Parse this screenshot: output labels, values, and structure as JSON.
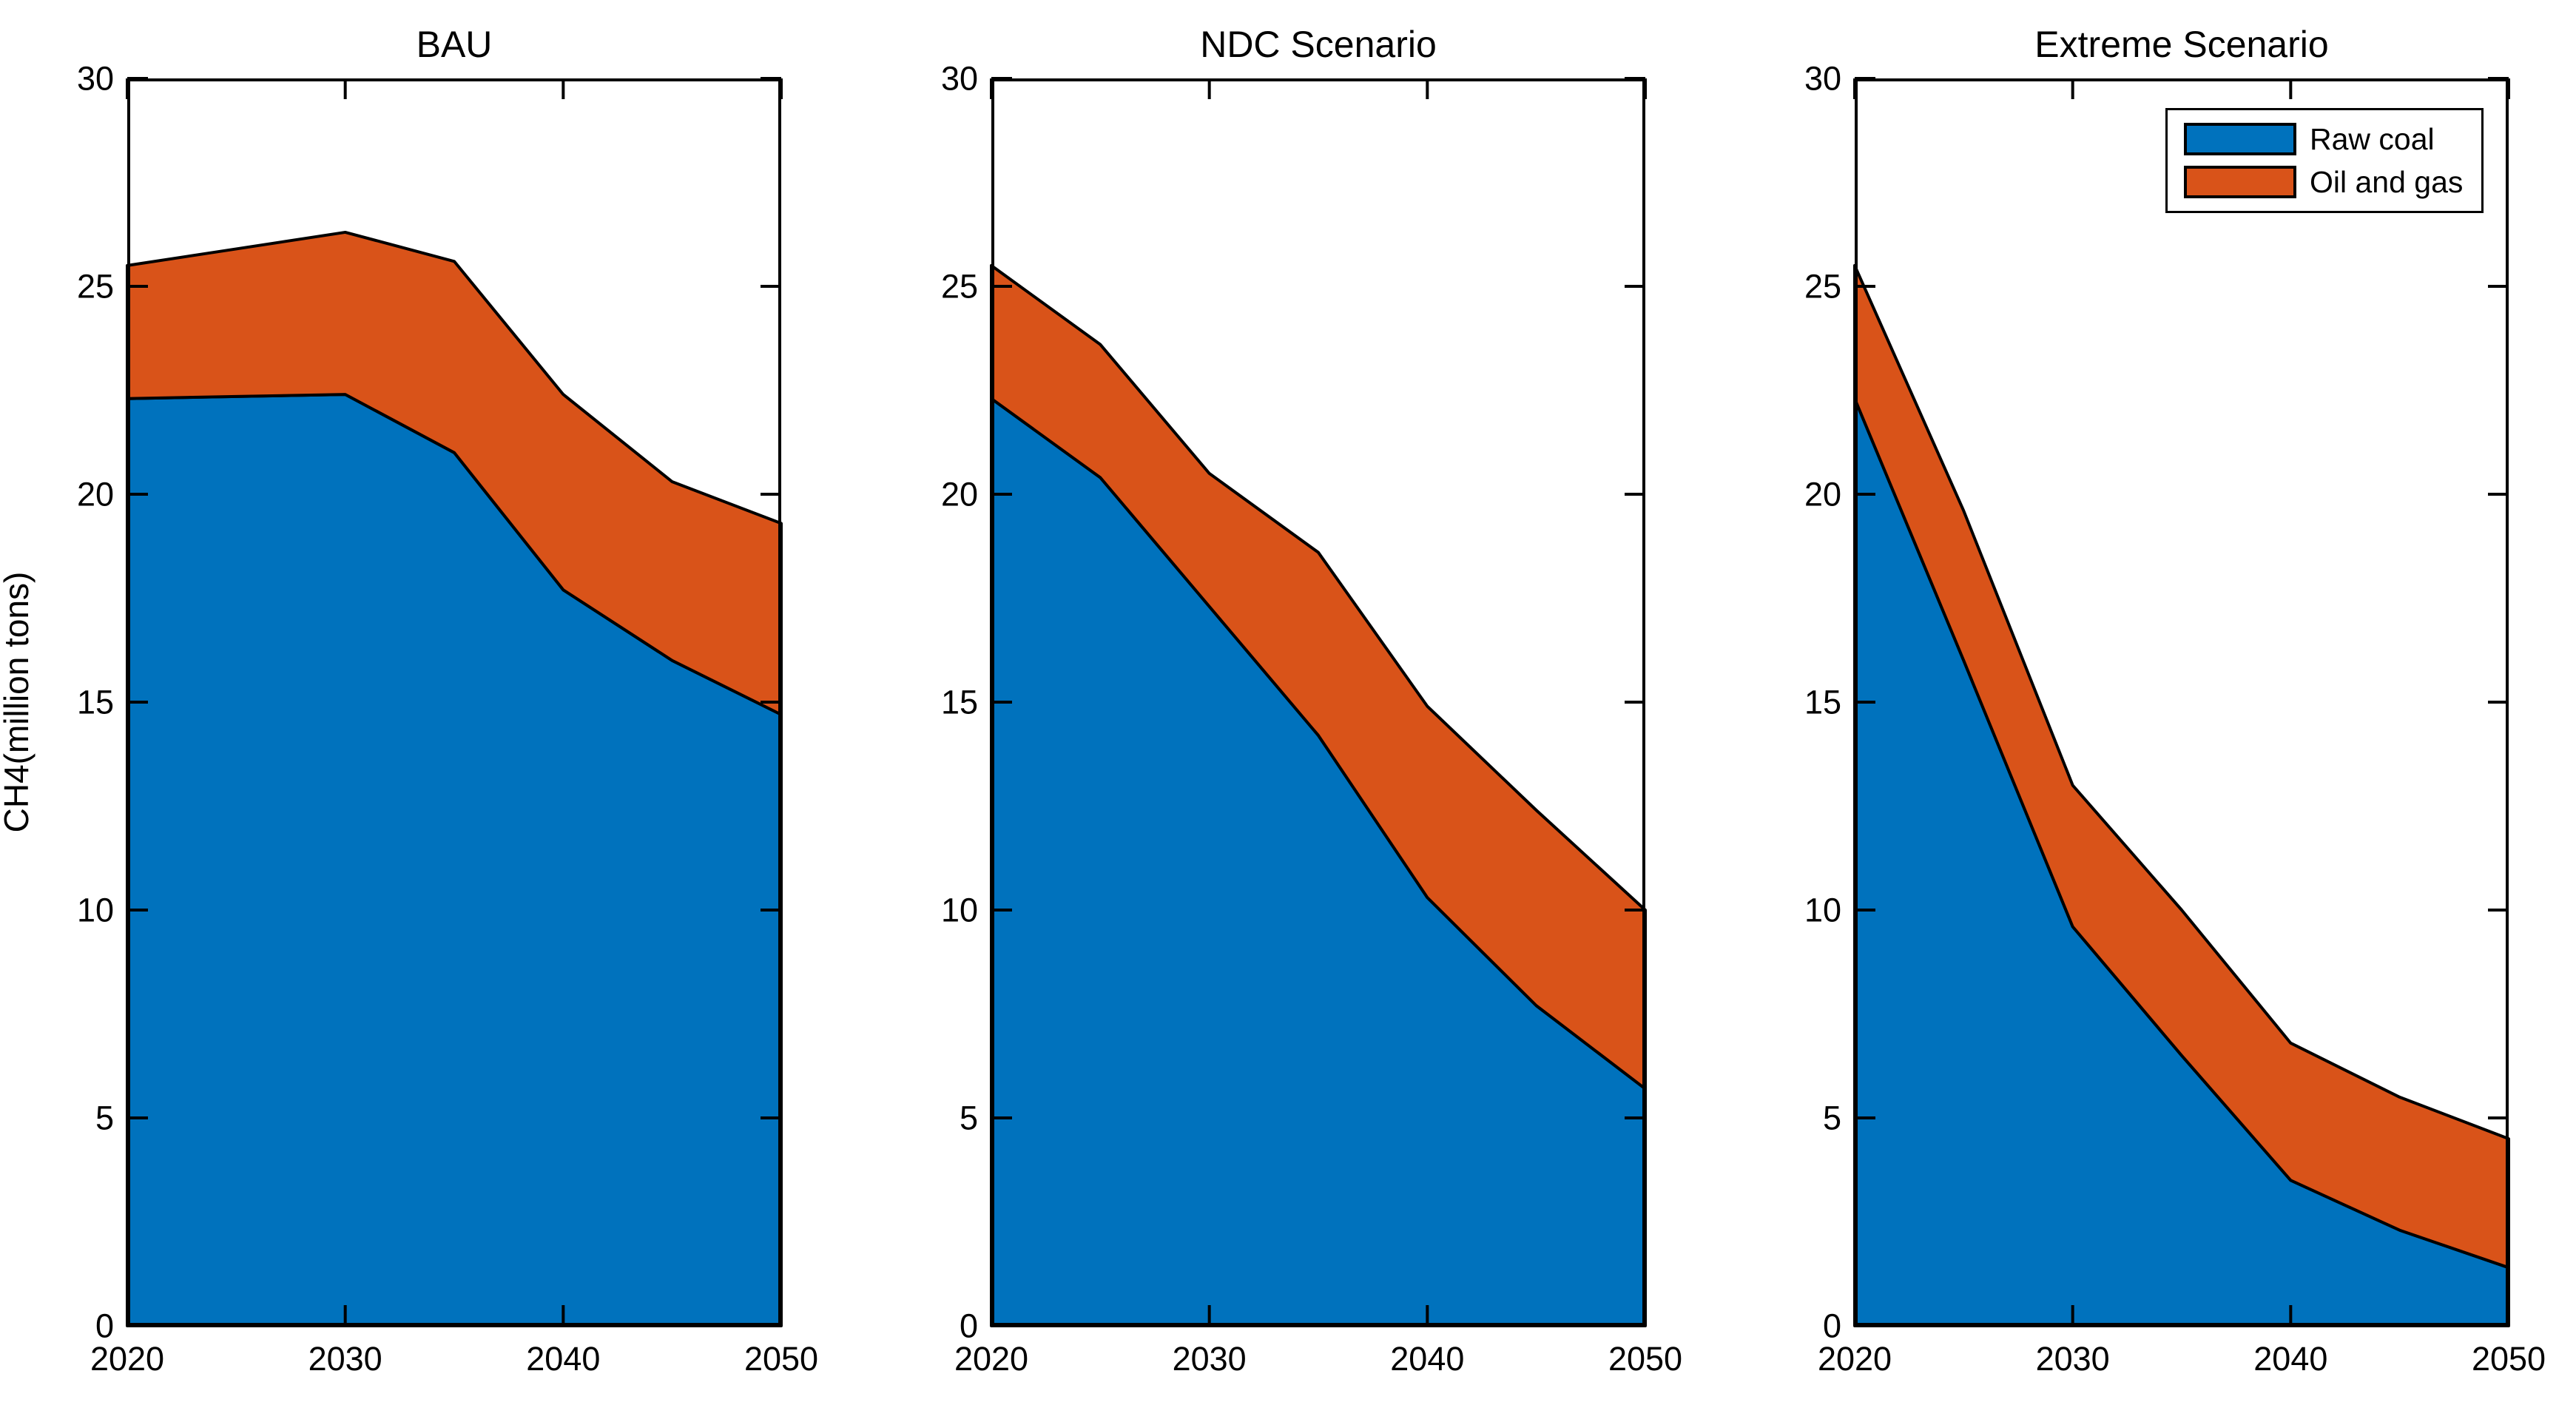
{
  "figure": {
    "background": "#ffffff",
    "ylabel": "CH4(million tons)",
    "axis_color": "#000000",
    "y_tick_labels": [
      "0",
      "5",
      "10",
      "15",
      "20",
      "25",
      "30"
    ],
    "x_tick_labels": [
      "2020",
      "2030",
      "2040",
      "2050"
    ]
  },
  "legend": {
    "items": [
      {
        "label": "Raw coal",
        "color": "#0072BD"
      },
      {
        "label": "Oil and gas",
        "color": "#D95319"
      }
    ],
    "position": "top-right-of-third-panel"
  },
  "chart_data": [
    {
      "type": "area",
      "stacked": true,
      "title": "BAU",
      "x": [
        2020,
        2025,
        2030,
        2035,
        2040,
        2045,
        2050
      ],
      "series": [
        {
          "name": "Raw coal",
          "color": "#0072BD",
          "values": [
            22.3,
            22.35,
            22.4,
            21.0,
            17.7,
            16.0,
            14.7
          ]
        },
        {
          "name": "Oil and gas",
          "color": "#D95319",
          "values": [
            3.2,
            3.55,
            3.9,
            4.6,
            4.7,
            4.3,
            4.6
          ]
        }
      ],
      "xlim": [
        2020,
        2050
      ],
      "ylim": [
        0,
        30
      ],
      "x_tick_values": [
        2020,
        2030,
        2040,
        2050
      ],
      "y_tick_values": [
        0,
        5,
        10,
        15,
        20,
        25,
        30
      ],
      "grid": false
    },
    {
      "type": "area",
      "stacked": true,
      "title": "NDC Scenario",
      "x": [
        2020,
        2025,
        2030,
        2035,
        2040,
        2045,
        2050
      ],
      "series": [
        {
          "name": "Raw coal",
          "color": "#0072BD",
          "values": [
            22.3,
            20.4,
            17.3,
            14.2,
            10.3,
            7.7,
            5.7
          ]
        },
        {
          "name": "Oil and gas",
          "color": "#D95319",
          "values": [
            3.2,
            3.2,
            3.2,
            4.4,
            4.6,
            4.7,
            4.3
          ]
        }
      ],
      "xlim": [
        2020,
        2050
      ],
      "ylim": [
        0,
        30
      ],
      "x_tick_values": [
        2020,
        2030,
        2040,
        2050
      ],
      "y_tick_values": [
        0,
        5,
        10,
        15,
        20,
        25,
        30
      ],
      "grid": false
    },
    {
      "type": "area",
      "stacked": true,
      "title": "Extreme Scenario",
      "x": [
        2020,
        2025,
        2030,
        2035,
        2040,
        2045,
        2050
      ],
      "series": [
        {
          "name": "Raw coal",
          "color": "#0072BD",
          "values": [
            22.3,
            16.0,
            9.6,
            6.5,
            3.5,
            2.3,
            1.4
          ]
        },
        {
          "name": "Oil and gas",
          "color": "#D95319",
          "values": [
            3.2,
            3.6,
            3.4,
            3.5,
            3.3,
            3.2,
            3.1
          ]
        }
      ],
      "xlim": [
        2020,
        2050
      ],
      "ylim": [
        0,
        30
      ],
      "x_tick_values": [
        2020,
        2030,
        2040,
        2050
      ],
      "y_tick_values": [
        0,
        5,
        10,
        15,
        20,
        25,
        30
      ],
      "grid": false
    }
  ],
  "style": {
    "line_color": "#000000",
    "line_width": 4,
    "tick_length": 28
  }
}
